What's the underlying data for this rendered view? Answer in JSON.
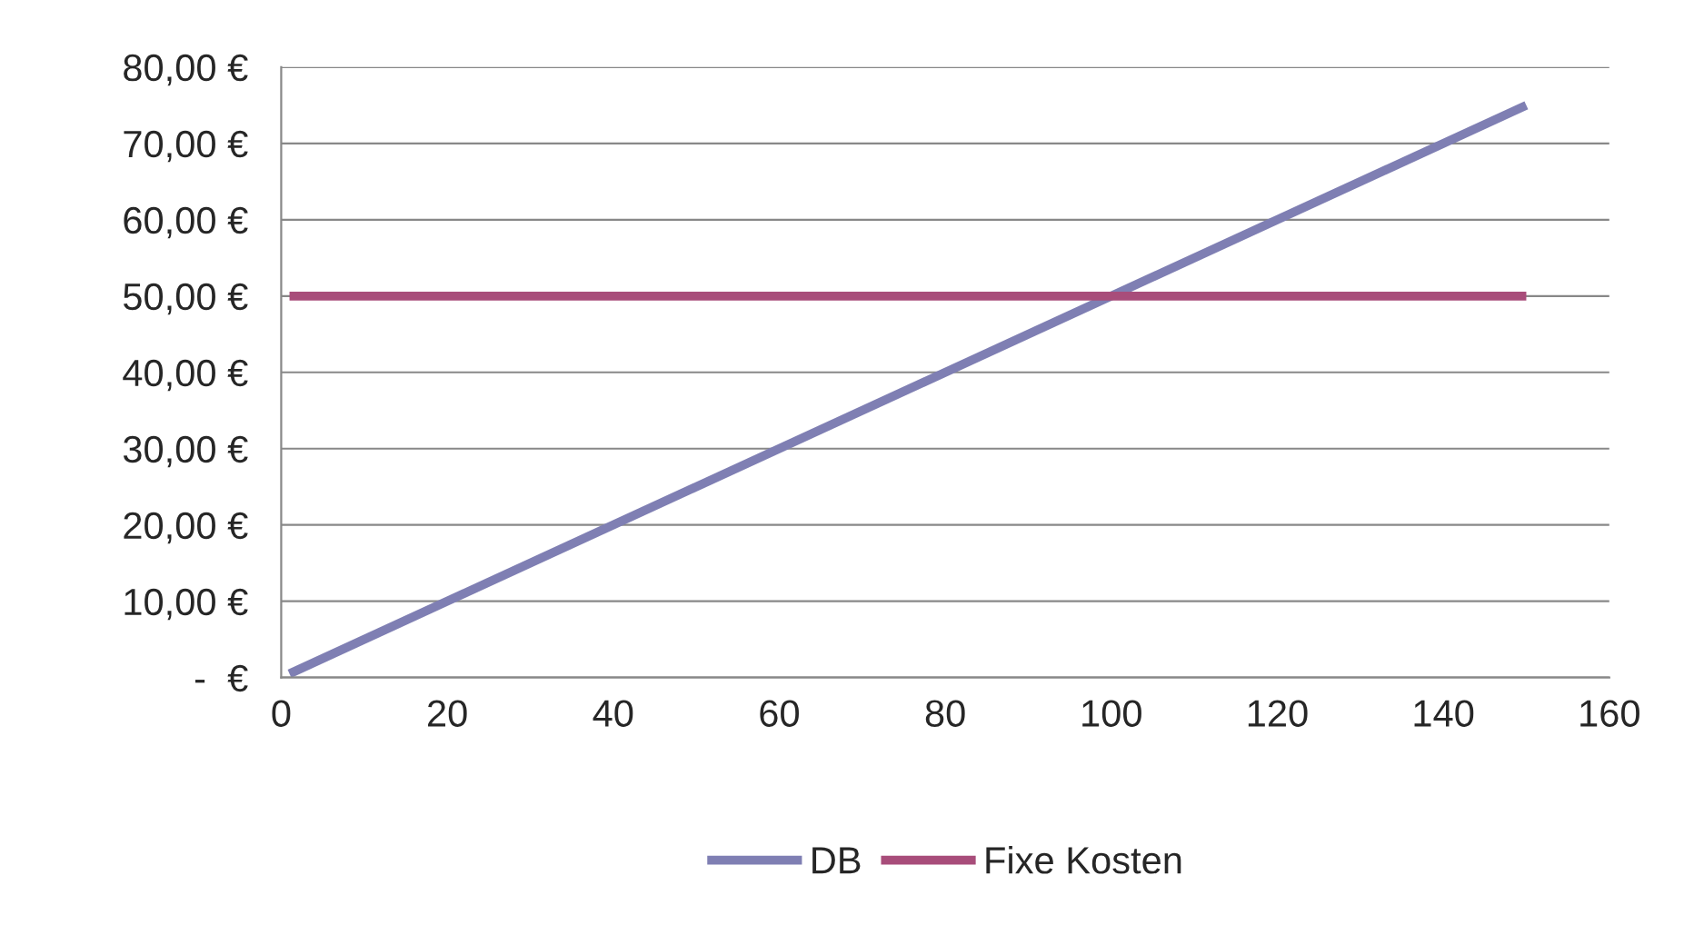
{
  "chart_data": {
    "type": "line",
    "x": [
      1,
      150
    ],
    "series": [
      {
        "name": "DB",
        "color": "#7f7fb3",
        "values": [
          0.5,
          75
        ]
      },
      {
        "name": "Fixe Kosten",
        "color": "#a84d7a",
        "values": [
          50,
          50
        ]
      }
    ],
    "xlim": [
      0,
      160
    ],
    "xticks": [
      0,
      20,
      40,
      60,
      80,
      100,
      120,
      140,
      160
    ],
    "ylim": [
      0,
      80
    ],
    "yticks": [
      {
        "value": 0,
        "label": "-  €"
      },
      {
        "value": 10,
        "label": "10,00 €"
      },
      {
        "value": 20,
        "label": "20,00 €"
      },
      {
        "value": 30,
        "label": "30,00 €"
      },
      {
        "value": 40,
        "label": "40,00 €"
      },
      {
        "value": 50,
        "label": "50,00 €"
      },
      {
        "value": 60,
        "label": "60,00 €"
      },
      {
        "value": 70,
        "label": "70,00 €"
      },
      {
        "value": 80,
        "label": "80,00 €"
      }
    ],
    "grid": "y",
    "legend": "bottom",
    "line_style": "solid",
    "marker": "none"
  }
}
